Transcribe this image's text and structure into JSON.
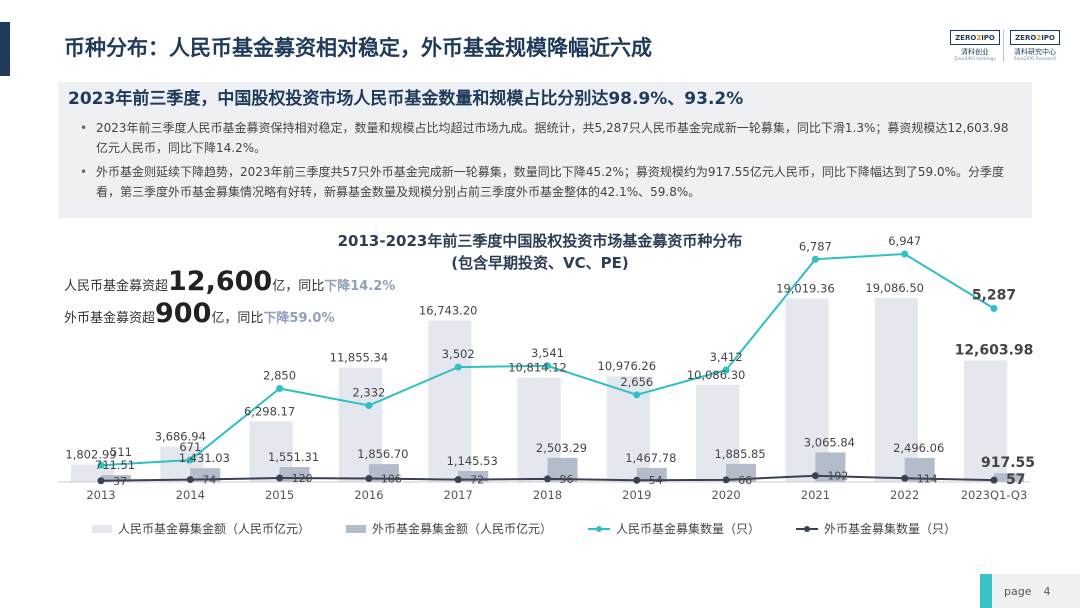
{
  "slide": {
    "title": "币种分布：人民币基金募资相对稳定，外币基金规模降幅近六成",
    "subtitle": "2023年前三季度，中国股权投资市场人民币基金数量和规模占比分别达98.9%、93.2%",
    "bullets": [
      "2023年前三季度人民币基金募资保持相对稳定，数量和规模占比均超过市场九成。据统计，共5,287只人民币基金完成新一轮募集，同比下滑1.3%；募资规模达12,603.98亿元人民币，同比下降14.2%。",
      "外币基金则延续下降趋势，2023年前三季度共57只外币基金完成新一轮募集，数量同比下降45.2%；募资规模约为917.55亿元人民币，同比下降幅达到了59.0%。分季度看，第三季度外币基金募集情况略有好转，新募基金数量及规模分别占前三季度外币基金整体的42.1%、59.8%。"
    ],
    "page_label": "page",
    "page_number": "4"
  },
  "logo": {
    "brand_left": "ZERO",
    "brand_right": "IPO",
    "name_cn_1": "清科创业",
    "name_en_1": "Zero2IPO Holdings",
    "name_cn_2": "清科研究中心",
    "name_en_2": "Zero2IPO Research"
  },
  "callouts": {
    "rmb_prefix": "人民币基金募资超",
    "rmb_big": "12,600",
    "rmb_unit": "亿，同比",
    "rmb_change": "下降14.2%",
    "fx_prefix": "外币基金募资超",
    "fx_big": "900",
    "fx_unit": "亿，同比",
    "fx_change": "下降59.0%"
  },
  "colors": {
    "title": "#1f3a5a",
    "rmb_bar": "#e4e7ee",
    "fx_bar": "#b3bccb",
    "rmb_line": "#2fc0c4",
    "fx_line": "#3a4252",
    "highlight": "#8fa0b8"
  },
  "chart_data": {
    "type": "bar",
    "title": "2013-2023年前三季度中国股权投资市场基金募资币种分布",
    "subtitle": "(包含早期投资、VC、PE)",
    "categories": [
      "2013",
      "2014",
      "2015",
      "2016",
      "2017",
      "2018",
      "2019",
      "2020",
      "2021",
      "2022",
      "2023Q1-Q3"
    ],
    "series": [
      {
        "name": "人民币基金募集金额（人民币亿元）",
        "kind": "bar",
        "values": [
          1802.99,
          3686.94,
          6298.17,
          11855.34,
          16743.2,
          10814.12,
          10976.26,
          10086.3,
          19019.36,
          19086.5,
          12603.98
        ],
        "labels": [
          "1,802.99",
          "3,686.94",
          "6,298.17",
          "11,855.34",
          "16,743.20",
          "10,814.12",
          "10,976.26",
          "10,086.30",
          "19,019.36",
          "19,086.50",
          "12,603.98"
        ]
      },
      {
        "name": "外币基金募集金额（人民币亿元）",
        "kind": "bar",
        "values": [
          711.51,
          1431.03,
          1551.31,
          1856.7,
          1145.53,
          2503.29,
          1467.78,
          1885.85,
          3065.84,
          2496.06,
          917.55
        ],
        "labels": [
          "711.51",
          "1,431.03",
          "1,551.31",
          "1,856.70",
          "1,145.53",
          "2,503.29",
          "1,467.78",
          "1,885.85",
          "3,065.84",
          "2,496.06",
          "917.55"
        ]
      },
      {
        "name": "人民币基金募集数量（只）",
        "kind": "line",
        "values": [
          511,
          671,
          2850,
          2332,
          3502,
          3541,
          2656,
          3412,
          6787,
          6947,
          5287
        ],
        "labels": [
          "511",
          "671",
          "2,850",
          "2,332",
          "3,502",
          "3,541",
          "2,656",
          "3,412",
          "6,787",
          "6,947",
          "5,287"
        ]
      },
      {
        "name": "外币基金募集数量（只）",
        "kind": "line",
        "values": [
          37,
          74,
          120,
          106,
          72,
          96,
          54,
          66,
          192,
          114,
          57
        ],
        "labels": [
          "37",
          "74",
          "120",
          "106",
          "72",
          "96",
          "54",
          "66",
          "192",
          "114",
          "57"
        ]
      }
    ],
    "legend": "bottom",
    "grid": false
  }
}
